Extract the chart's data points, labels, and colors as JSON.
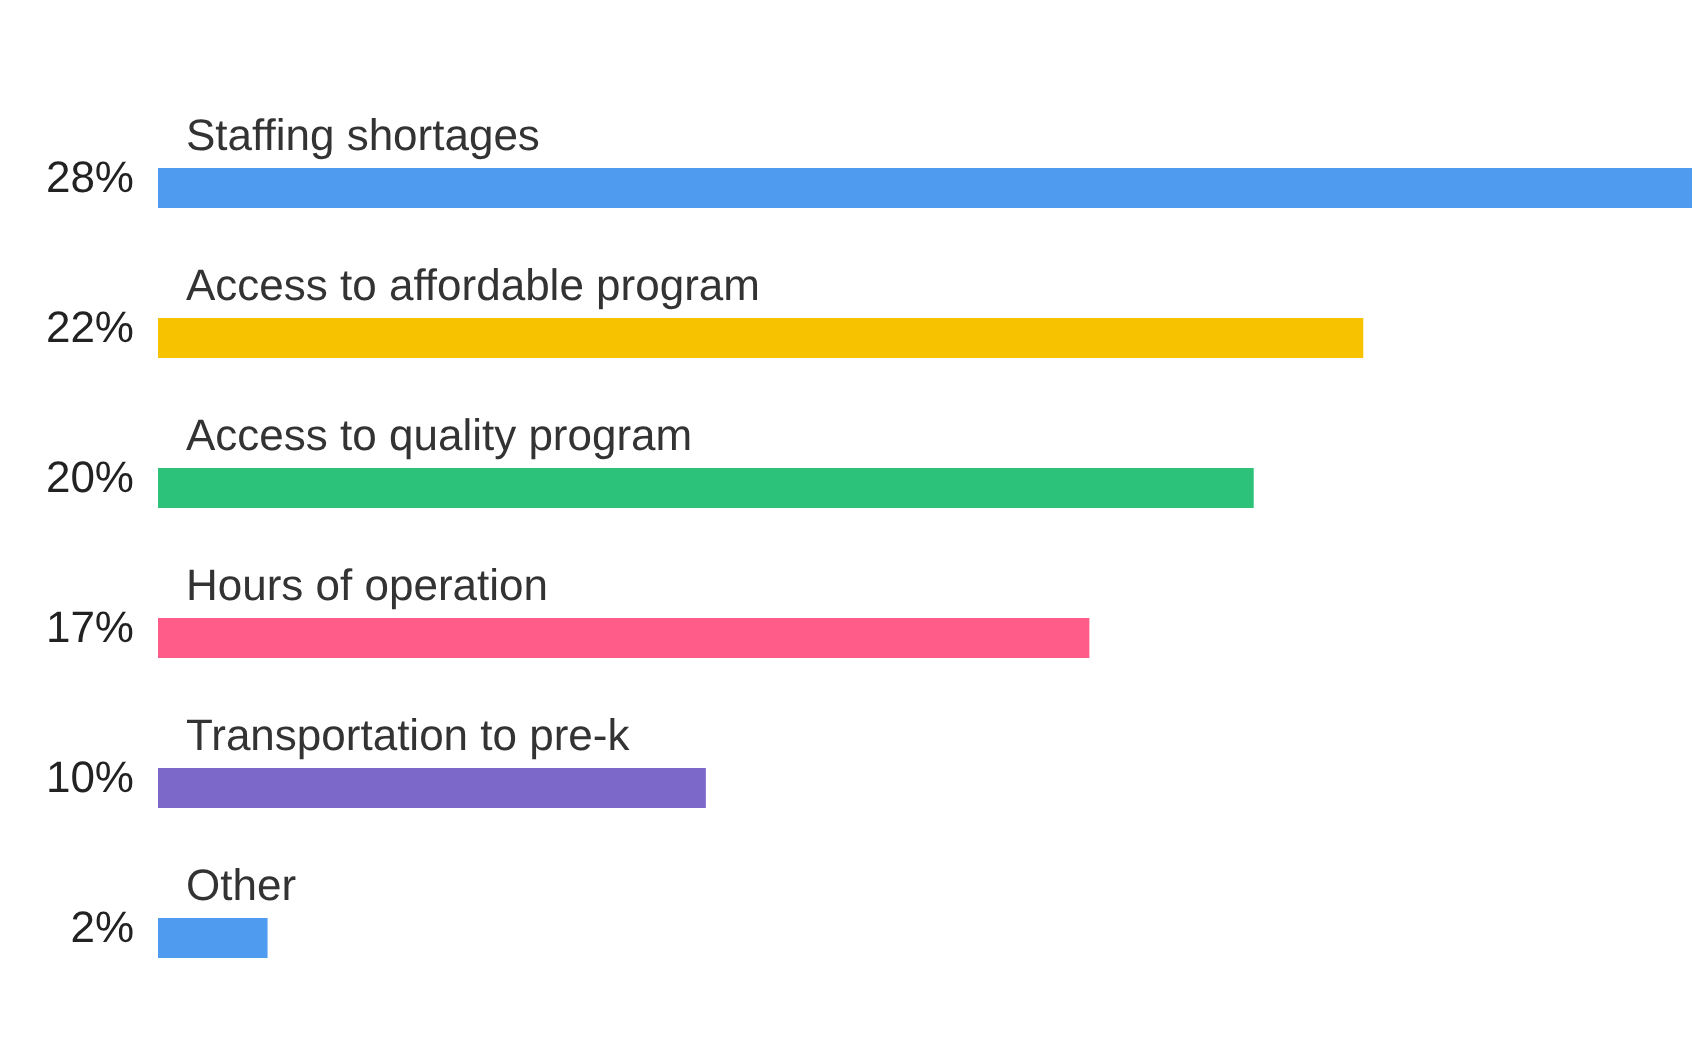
{
  "chart_data": {
    "type": "bar",
    "orientation": "horizontal",
    "categories": [
      "Staffing shortages",
      "Access to affordable program",
      "Access to quality program",
      "Hours of operation",
      "Transportation to pre-k",
      "Other"
    ],
    "values": [
      28,
      22,
      20,
      17,
      10,
      2
    ],
    "value_labels": [
      "28%",
      "22%",
      "20%",
      "17%",
      "10%",
      "2%"
    ],
    "colors": [
      "#4f9bef",
      "#f7c200",
      "#2dc27a",
      "#ff5c8a",
      "#7b68c8",
      "#4f9bef"
    ]
  }
}
